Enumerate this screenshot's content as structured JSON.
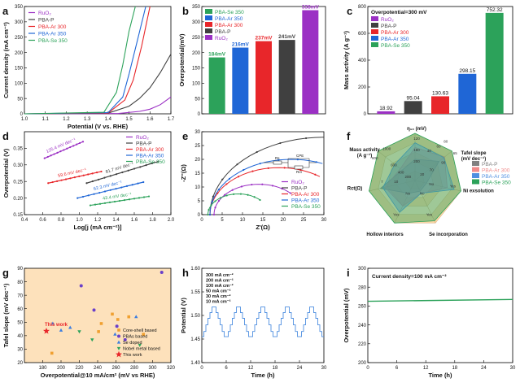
{
  "chart_data": [
    {
      "panel": "a",
      "type": "line",
      "xlabel": "Potential (V vs. RHE)",
      "ylabel": "Current density (mA cm⁻²)",
      "xlim": [
        1.0,
        1.7
      ],
      "ylim": [
        0,
        350
      ],
      "xticks": [
        "1.0",
        "1.1",
        "1.2",
        "1.3",
        "1.4",
        "1.5",
        "1.6",
        "1.7"
      ],
      "yticks": [
        "0",
        "50",
        "100",
        "150",
        "200",
        "250",
        "300",
        "350"
      ],
      "legend": "top-left",
      "series": [
        {
          "name": "RuO2",
          "color": "#9b30c4",
          "x": [
            1.0,
            1.45,
            1.55,
            1.6,
            1.65,
            1.7
          ],
          "y": [
            0,
            1,
            8,
            15,
            30,
            55
          ]
        },
        {
          "name": "PBA-P",
          "color": "#404040",
          "x": [
            1.0,
            1.4,
            1.5,
            1.55,
            1.6,
            1.65,
            1.7
          ],
          "y": [
            0,
            2,
            25,
            50,
            85,
            135,
            195
          ]
        },
        {
          "name": "PBA-Ar 300",
          "color": "#e8262a",
          "x": [
            1.0,
            1.4,
            1.48,
            1.52,
            1.56,
            1.6
          ],
          "y": [
            0,
            3,
            45,
            110,
            220,
            350
          ]
        },
        {
          "name": "PBA-Ar 350",
          "color": "#1f66d6",
          "x": [
            1.0,
            1.4,
            1.47,
            1.5,
            1.54,
            1.58
          ],
          "y": [
            0,
            4,
            55,
            130,
            240,
            350
          ]
        },
        {
          "name": "PBA-Se 350",
          "color": "#2ca25a",
          "x": [
            1.0,
            1.38,
            1.44,
            1.47,
            1.5,
            1.53
          ],
          "y": [
            0,
            5,
            70,
            160,
            270,
            350
          ]
        }
      ]
    },
    {
      "panel": "b",
      "type": "bar",
      "ylabel": "Overpotential(mV)",
      "ylim": [
        0,
        350
      ],
      "yticks": [
        "0",
        "50",
        "100",
        "150",
        "200",
        "250",
        "300",
        "350"
      ],
      "legend": "top-left",
      "categories": [
        "PBA-Se 350",
        "PBA-Ar 350",
        "PBA-Ar 300",
        "PBA-P",
        "RuO2"
      ],
      "values": [
        184,
        216,
        237,
        241,
        338
      ],
      "labels": [
        "184mV",
        "216mV",
        "237mV",
        "241mV",
        "338mV"
      ],
      "colors": [
        "#2ca25a",
        "#1f66d6",
        "#e8262a",
        "#404040",
        "#9b30c4"
      ]
    },
    {
      "panel": "c",
      "type": "bar",
      "title": "Overpotential=300 mV",
      "ylabel": "Mass activity (A g⁻¹)",
      "ylim": [
        0,
        800
      ],
      "yticks": [
        "0",
        "200",
        "400",
        "600",
        "800"
      ],
      "legend": "top-left",
      "categories": [
        "RuO2",
        "PBA-P",
        "PBA-Ar 300",
        "PBA-Ar 350",
        "PBA-Se 350"
      ],
      "values": [
        18.92,
        95.04,
        130.63,
        298.15,
        752.32
      ],
      "labels": [
        "18.92",
        "95.04",
        "130.63",
        "298.15",
        "752.32"
      ],
      "colors": [
        "#9b30c4",
        "#404040",
        "#e8262a",
        "#1f66d6",
        "#2ca25a"
      ]
    },
    {
      "panel": "d",
      "type": "scatter",
      "xlabel": "Log[j (mA cm⁻²)]",
      "ylabel": "Overpotential (V)",
      "xlim": [
        0.4,
        2.0
      ],
      "ylim": [
        0.15,
        0.4
      ],
      "xticks": [
        "0.4",
        "0.6",
        "0.8",
        "1.0",
        "1.2",
        "1.4",
        "1.6",
        "1.8",
        "2.0"
      ],
      "yticks": [
        "0.15",
        "0.20",
        "0.25",
        "0.30",
        "0.35"
      ],
      "legend": "top-right",
      "series": [
        {
          "name": "RuO2",
          "color": "#9b30c4",
          "x": [
            0.62,
            1.04
          ],
          "y": [
            0.32,
            0.37
          ],
          "label": "125.4 mV dec⁻¹"
        },
        {
          "name": "PBA-P",
          "color": "#404040",
          "x": [
            1.08,
            1.86
          ],
          "y": [
            0.245,
            0.31
          ],
          "label": "81.7 mV dec⁻¹"
        },
        {
          "name": "PBA-Ar 300",
          "color": "#e8262a",
          "x": [
            0.66,
            1.24
          ],
          "y": [
            0.245,
            0.28
          ],
          "label": "59.6 mV dec⁻¹"
        },
        {
          "name": "PBA-Ar 350",
          "color": "#1f66d6",
          "x": [
            0.98,
            1.7
          ],
          "y": [
            0.2,
            0.248
          ],
          "label": "62.3 mV dec⁻¹"
        },
        {
          "name": "PBA-Se 350",
          "color": "#2ca25a",
          "x": [
            1.12,
            1.76
          ],
          "y": [
            0.178,
            0.205
          ],
          "label": "43.4 mV dec⁻¹"
        }
      ]
    },
    {
      "panel": "e",
      "type": "scatter",
      "xlabel": "Z'(Ω)",
      "ylabel": "-Z''(Ω)",
      "xlim": [
        0,
        30
      ],
      "ylim": [
        0,
        30
      ],
      "xticks": [
        "0",
        "5",
        "10",
        "15",
        "20",
        "25",
        "30"
      ],
      "yticks": [
        "0",
        "5",
        "10",
        "15",
        "20",
        "25",
        "30"
      ],
      "legend": "bottom-right",
      "series": [
        {
          "name": "RuO2",
          "color": "#9b30c4",
          "center": 14,
          "radius": 11
        },
        {
          "name": "PBA-P",
          "color": "#404040",
          "center": 30,
          "radius": 28
        },
        {
          "name": "PBA-Ar 300",
          "color": "#e8262a",
          "center": 19,
          "radius": 17
        },
        {
          "name": "PBA-Ar 350",
          "color": "#1f66d6",
          "center": 22,
          "radius": 20
        },
        {
          "name": "PBA-Se 350",
          "color": "#2ca25a",
          "center": 9,
          "radius": 7.5
        }
      ]
    },
    {
      "panel": "f",
      "type": "radar",
      "axes": [
        "η₁₀ (mV)",
        "Tafel slope\n(mV dec⁻¹)",
        "Ni exsolution",
        "Se incorporation",
        "Hollow interiors",
        "Rct(Ω)",
        "Mass activity\n(A g⁻¹)"
      ],
      "legend": "right",
      "series": [
        {
          "name": "PBA-P",
          "color": "#808080",
          "values": [
            0.45,
            0.65,
            0.25,
            0.25,
            0.3,
            0.75,
            0.35
          ]
        },
        {
          "name": "PBA-Ar 300",
          "color": "#f08a8a",
          "values": [
            0.7,
            0.8,
            0.7,
            0.3,
            0.6,
            0.65,
            0.4
          ]
        },
        {
          "name": "PBA-Ar 350",
          "color": "#4f8fe0",
          "values": [
            0.8,
            0.78,
            0.85,
            0.3,
            0.75,
            0.7,
            0.55
          ]
        },
        {
          "name": "PBA-Se 350",
          "color": "#2ca25a",
          "values": [
            1.0,
            1.0,
            1.0,
            0.95,
            1.0,
            1.0,
            1.0
          ]
        }
      ],
      "tick_labels": [
        "120",
        "180",
        "200",
        "65",
        "90",
        "70",
        "20",
        "40",
        "60",
        "80",
        "7",
        "10",
        "800",
        "1000",
        "600",
        "400",
        "200",
        "Yes",
        "No",
        "Yes",
        "No",
        "Yes",
        "No"
      ]
    },
    {
      "panel": "g",
      "type": "scatter",
      "xlabel": "Overpotential@10 mA/cm² (mV vs RHE)",
      "ylabel": "Tafel slope (mV dec⁻¹)",
      "xlim": [
        160,
        320
      ],
      "ylim": [
        20,
        90
      ],
      "xticks": [
        "180",
        "200",
        "220",
        "240",
        "260",
        "280",
        "300",
        "320"
      ],
      "yticks": [
        "20",
        "30",
        "40",
        "50",
        "60",
        "70",
        "80",
        "90"
      ],
      "legend": "bottom-right",
      "annotation": "This work",
      "series": [
        {
          "name": "Core-shell based",
          "color": "#f0a030",
          "marker": "square",
          "x": [
            256,
            262,
            244,
            241,
            290,
            274
          ],
          "y": [
            56,
            52,
            49,
            43,
            41,
            54
          ]
        },
        {
          "name": "PBAs based",
          "color": "#6a3fc9",
          "marker": "circle",
          "x": [
            222,
            236,
            310,
            261,
            270
          ],
          "y": [
            77,
            59,
            87,
            47,
            37
          ]
        },
        {
          "name": "Se doped",
          "color": "#3b7de0",
          "marker": "triangle",
          "x": [
            191,
            200,
            259,
            282,
            210
          ],
          "y": [
            49,
            44,
            41,
            54,
            46
          ]
        },
        {
          "name": "Nobel metal based",
          "color": "#2ca25a",
          "marker": "triangle-down",
          "x": [
            220,
            234,
            286
          ],
          "y": [
            43,
            37,
            33
          ]
        },
        {
          "name": "This work",
          "color": "#e8262a",
          "marker": "star",
          "x": [
            184
          ],
          "y": [
            43.4
          ]
        }
      ],
      "extra_point": {
        "color": "#f0a030",
        "marker": "square",
        "x": 190,
        "y": 27
      }
    },
    {
      "panel": "h",
      "type": "line",
      "xlabel": "Time (h)",
      "ylabel": "Potential (V)",
      "xlim": [
        0,
        30
      ],
      "ylim": [
        1.4,
        1.6
      ],
      "xticks": [
        "0",
        "6",
        "12",
        "18",
        "24",
        "30"
      ],
      "yticks": [
        "1.40",
        "1.45",
        "1.50",
        "1.55",
        "1.60"
      ],
      "steps": [
        "300 mA cm⁻²",
        "200 mA cm⁻²",
        "100 mA cm⁻²",
        "50 mA cm⁻²",
        "30 mA cm⁻²",
        "10 mA cm⁻²"
      ],
      "step_values": [
        1.518,
        1.506,
        1.494,
        1.48,
        1.466,
        1.455
      ],
      "cycles": 5,
      "color": "#4f8fe0"
    },
    {
      "panel": "i",
      "type": "line",
      "title": "Current density=100 mA cm⁻²",
      "xlabel": "Time (h)",
      "ylabel": "Overpotential (mV)",
      "xlim": [
        0,
        30
      ],
      "ylim": [
        200,
        300
      ],
      "xticks": [
        "0",
        "6",
        "12",
        "18",
        "24",
        "30"
      ],
      "yticks": [
        "200",
        "220",
        "240",
        "260",
        "280",
        "300"
      ],
      "x": [
        0,
        30
      ],
      "y": [
        265,
        267
      ],
      "color": "#2ca25a"
    }
  ],
  "panel_letters": [
    "a",
    "b",
    "c",
    "d",
    "e",
    "f",
    "g",
    "h",
    "i"
  ],
  "legend_a": [
    "RuO₂",
    "PBA-P",
    "PBA-Ar 300",
    "PBA-Ar 350",
    "PBA-Se 350"
  ],
  "legend_b": [
    "PBA-Se 350",
    "PBA-Ar 350",
    "PBA-Ar 300",
    "PBA-P",
    "RuO₂"
  ],
  "legend_c": [
    "RuO₂",
    "PBA-P",
    "PBA-Ar 300",
    "PBA-Ar 350",
    "PBA-Se 350"
  ],
  "legend_d": [
    "RuO₂",
    "PBA-P",
    "PBA-Ar 300",
    "PBA-Ar 350",
    "PBA-Se 350"
  ],
  "legend_e": [
    "RuO₂",
    "PBA-P",
    "PBA-Ar 300",
    "PBA-Ar 350",
    "PBA-Se 350"
  ],
  "legend_f": [
    "PBA-P",
    "PBA-Ar 300",
    "PBA-Ar 350",
    "PBA-Se 350"
  ],
  "legend_g": [
    "Core-shell based",
    "PBAs based",
    "Se doped",
    "Nobel metal based",
    "This work"
  ],
  "circuit": {
    "rs": "Rs",
    "cpe": "CPE",
    "rct": "Rct"
  }
}
